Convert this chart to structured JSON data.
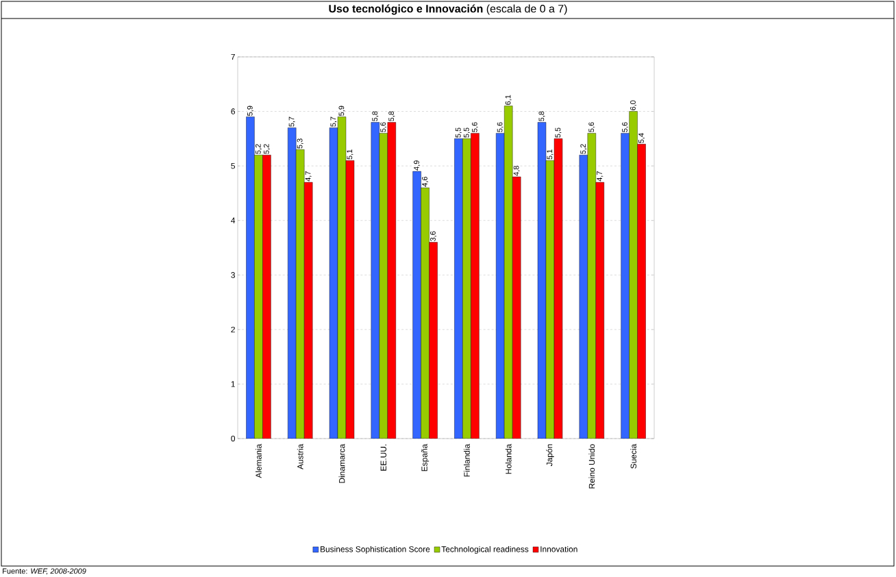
{
  "chart_data": {
    "type": "bar",
    "title": "**Uso tecnológico e Innovación** (escala de 0 a 7)",
    "categories": [
      "Alemania",
      "Austria",
      "Dinamarca",
      "EE.UU.",
      "España",
      "Finlandia",
      "Holanda",
      "Japón",
      "Reino Unido",
      "Suecia"
    ],
    "series": [
      {
        "name": "Business Sophistication Score",
        "color": "#3366ff",
        "values": [
          5.9,
          5.7,
          5.7,
          5.8,
          4.9,
          5.5,
          5.6,
          5.8,
          5.2,
          5.6
        ],
        "value_labels": [
          "5,9",
          "5,7",
          "5,7",
          "5,8",
          "4,9",
          "5,5",
          "5,6",
          "5,8",
          "5,2",
          "5,6"
        ]
      },
      {
        "name": "Technological readiness",
        "color": "#99cc00",
        "values": [
          5.2,
          5.3,
          5.9,
          5.6,
          4.6,
          5.5,
          6.1,
          5.1,
          5.6,
          6.0
        ],
        "value_labels": [
          "5,2",
          "5,3",
          "5,9",
          "5,6",
          "4,6",
          "5,5",
          "6,1",
          "5,1",
          "5,6",
          "6,0"
        ]
      },
      {
        "name": "Innovation",
        "color": "#ff0000",
        "values": [
          5.2,
          4.7,
          5.1,
          5.8,
          3.6,
          5.6,
          4.8,
          5.5,
          4.7,
          5.4
        ],
        "value_labels": [
          "5,2",
          "4,7",
          "5,1",
          "5,8",
          "3,6",
          "5,6",
          "4,8",
          "5,5",
          "4,7",
          "5,4"
        ]
      }
    ],
    "ylim": [
      0,
      7
    ],
    "yticks": [
      0,
      1,
      2,
      3,
      4,
      5,
      6,
      7
    ],
    "grid": "y",
    "legend": "bottom",
    "annotations": [
      "Fuente: *WEF, 2008-2009*"
    ]
  }
}
